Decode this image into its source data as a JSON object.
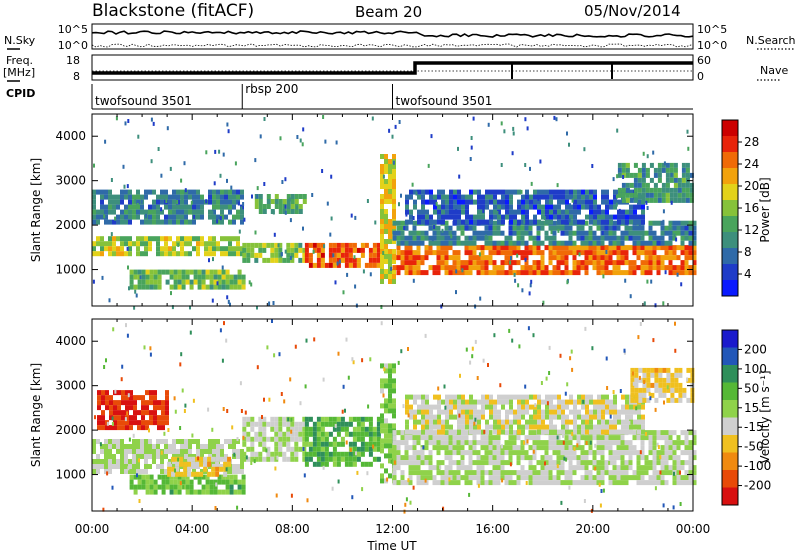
{
  "header": {
    "station": "Blackstone (fitACF)",
    "beam": "Beam 20",
    "date": "05/Nov/2014"
  },
  "side_labels": {
    "nsky": "N.Sky",
    "freq": "Freq.",
    "freq_unit": "[MHz]",
    "cpid": "CPID",
    "nsearch": "N.Search",
    "nave": "Nave"
  },
  "top_axes": {
    "nsky_ticks": [
      "10^5",
      "10^0"
    ],
    "nsearch_ticks": [
      "10^5",
      "10^0"
    ],
    "freq_ticks": [
      "18",
      "8"
    ],
    "nave_ticks": [
      "60",
      "0"
    ]
  },
  "cpid_segments": [
    {
      "label": "twofsound 3501",
      "start_h": 0,
      "end_h": 6
    },
    {
      "label": "rbsp 200",
      "start_h": 6,
      "end_h": 12
    },
    {
      "label": "twofsound 3501",
      "start_h": 12,
      "end_h": 24
    }
  ],
  "x_axis": {
    "title": "Time UT",
    "ticks": [
      "00:00",
      "04:00",
      "08:00",
      "12:00",
      "16:00",
      "20:00",
      "00:00"
    ]
  },
  "colors": {
    "power_scale": [
      "#0a1aff",
      "#1f3cc8",
      "#2f6aa8",
      "#3d8f7c",
      "#49a45c",
      "#86c23a",
      "#e3d21a",
      "#f2a20c",
      "#f06a06",
      "#e8240a",
      "#cc0000"
    ],
    "velocity_scale": [
      "#1a1acc",
      "#2257b8",
      "#2f8f5a",
      "#55b836",
      "#8fd24a",
      "#cfcfcf",
      "#f0c020",
      "#f08a10",
      "#e84a08",
      "#d81010"
    ]
  },
  "chart_data": [
    {
      "type": "heatmap",
      "title": "",
      "xlabel": "Time UT",
      "ylabel": "Slant Range [km]",
      "x_range_h": [
        0,
        24
      ],
      "y_range_km": [
        180,
        4500
      ],
      "y_ticks": [
        "1000",
        "2000",
        "3000",
        "4000"
      ],
      "colorbar": {
        "label": "Power [dB]",
        "ticks": [
          "28",
          "24",
          "20",
          "16",
          "12",
          "8",
          "4"
        ],
        "range": [
          0,
          30
        ]
      },
      "bands": [
        {
          "t0": 0.0,
          "t1": 6.0,
          "r0": 1300,
          "r1": 1750,
          "power": 16
        },
        {
          "t0": 0.0,
          "t1": 6.0,
          "r0": 2100,
          "r1": 2800,
          "power": 8
        },
        {
          "t0": 1.5,
          "t1": 6.0,
          "r0": 650,
          "r1": 1000,
          "power": 14
        },
        {
          "t0": 6.0,
          "t1": 8.5,
          "r0": 1200,
          "r1": 1600,
          "power": 14
        },
        {
          "t0": 6.5,
          "t1": 8.5,
          "r0": 2300,
          "r1": 2700,
          "power": 12
        },
        {
          "t0": 8.5,
          "t1": 11.5,
          "r0": 1100,
          "r1": 1600,
          "power": 25
        },
        {
          "t0": 11.5,
          "t1": 12.0,
          "r0": 700,
          "r1": 3600,
          "power": 18
        },
        {
          "t0": 12.0,
          "t1": 24.0,
          "r0": 900,
          "r1": 1550,
          "power": 24
        },
        {
          "t0": 12.0,
          "t1": 24.0,
          "r0": 1550,
          "r1": 2100,
          "power": 8
        },
        {
          "t0": 12.5,
          "t1": 22.0,
          "r0": 2100,
          "r1": 2800,
          "power": 5
        },
        {
          "t0": 21.0,
          "t1": 24.0,
          "r0": 2600,
          "r1": 3400,
          "power": 10
        }
      ]
    },
    {
      "type": "heatmap",
      "title": "",
      "xlabel": "Time UT",
      "ylabel": "Slant Range [km]",
      "x_range_h": [
        0,
        24
      ],
      "y_range_km": [
        180,
        4500
      ],
      "y_ticks": [
        "1000",
        "2000",
        "3000",
        "4000"
      ],
      "colorbar": {
        "label": "Velocity [m s⁻¹]",
        "ticks": [
          "200",
          "100",
          "50",
          "15",
          "-15",
          "-50",
          "-100",
          "-200"
        ],
        "range": [
          -250,
          250
        ]
      },
      "bands": [
        {
          "t0": 0.0,
          "t1": 6.0,
          "r0": 1100,
          "r1": 1800,
          "velocity": 0
        },
        {
          "t0": 0.2,
          "t1": 3.0,
          "r0": 2100,
          "r1": 2900,
          "velocity": -200
        },
        {
          "t0": 1.5,
          "t1": 6.0,
          "r0": 650,
          "r1": 1000,
          "velocity": 60
        },
        {
          "t0": 3.0,
          "t1": 5.5,
          "r0": 1000,
          "r1": 1400,
          "velocity": -60
        },
        {
          "t0": 6.0,
          "t1": 8.5,
          "r0": 1300,
          "r1": 2300,
          "velocity": 0
        },
        {
          "t0": 8.5,
          "t1": 11.5,
          "r0": 1200,
          "r1": 2300,
          "velocity": 80
        },
        {
          "t0": 11.5,
          "t1": 12.0,
          "r0": 800,
          "r1": 3500,
          "velocity": 40
        },
        {
          "t0": 12.0,
          "t1": 24.0,
          "r0": 800,
          "r1": 2000,
          "velocity": 0
        },
        {
          "t0": 12.5,
          "t1": 22.0,
          "r0": 2000,
          "r1": 2800,
          "velocity": -20
        },
        {
          "t0": 21.5,
          "t1": 24.0,
          "r0": 2700,
          "r1": 3400,
          "velocity": -60
        }
      ]
    }
  ]
}
